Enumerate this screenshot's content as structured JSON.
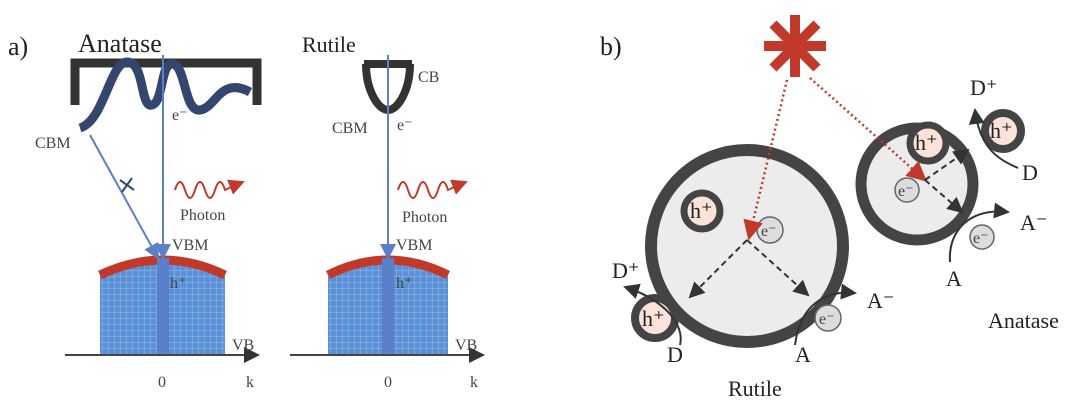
{
  "panel_a": {
    "label": "a)",
    "diagrams": [
      {
        "title": "Anatase",
        "cbm": "CBM",
        "electron": "e⁻",
        "photon": "Photon",
        "vbm": "VBM",
        "hole": "h⁺",
        "vb": "VB",
        "origin": "0",
        "axis": "k"
      },
      {
        "title": "Rutile",
        "cb": "CB",
        "cbm": "CBM",
        "electron": "e⁻",
        "photon": "Photon",
        "vbm": "VBM",
        "hole": "h⁺",
        "vb": "VB",
        "origin": "0",
        "axis": "k"
      }
    ]
  },
  "panel_b": {
    "label": "b)",
    "rutile": {
      "name": "Rutile",
      "hole_inside": "h⁺",
      "electron_inside": "e⁻",
      "hole_outside": "h⁺",
      "electron_outside": "e⁻",
      "donor_oxidized": "D⁺",
      "acceptor_reduced": "A⁻",
      "donor": "D",
      "acceptor": "A"
    },
    "anatase": {
      "name": "Anatase",
      "hole_inside": "h⁺",
      "electron_inside": "e⁻",
      "hole_outside": "h⁺",
      "electron_outside": "e⁻",
      "donor_oxidized": "D⁺",
      "acceptor_reduced": "A⁻",
      "donor": "D",
      "acceptor": "A"
    }
  }
}
